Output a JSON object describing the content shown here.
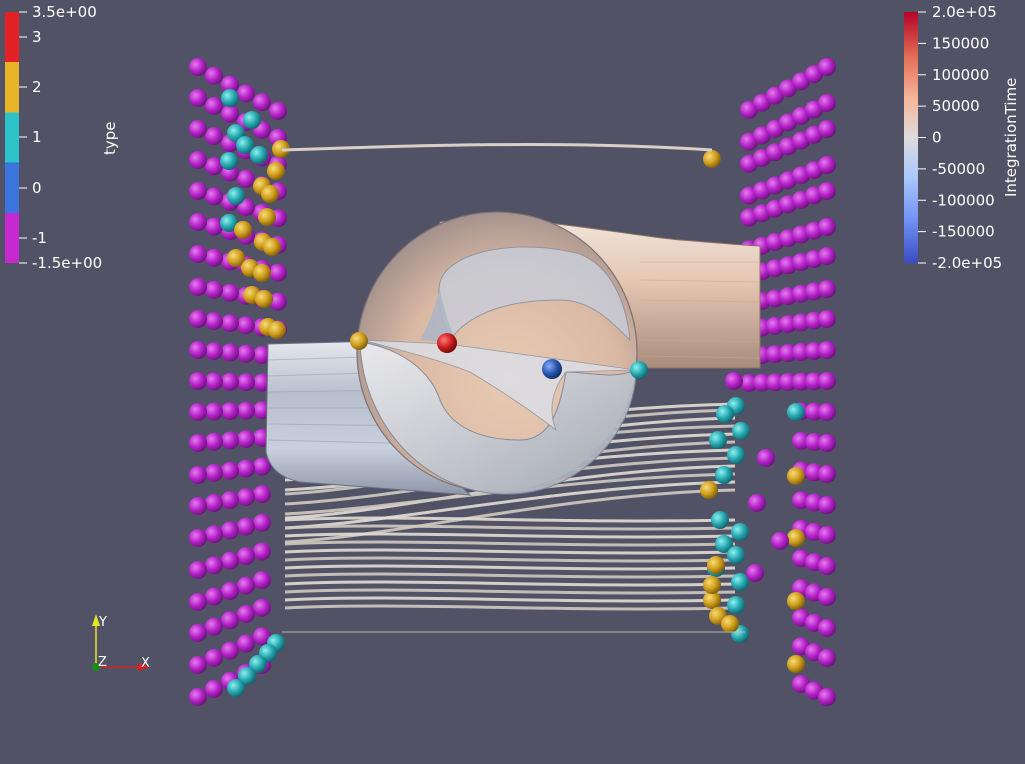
{
  "colors": {
    "background": "#525266",
    "magenta": "#b422c8",
    "teal": "#26b4bc",
    "gold": "#d4a422",
    "red": "#cc1e1e",
    "blue": "#2a58b4",
    "streamline": "#d6d2c8"
  },
  "type_legend": {
    "title": "type",
    "labels": [
      "3.5e+00",
      "3",
      "2",
      "1",
      "0",
      "-1",
      "-1.5e+00"
    ],
    "bands": [
      {
        "value": "3",
        "color": "#e32124"
      },
      {
        "value": "2",
        "color": "#e8b42a"
      },
      {
        "value": "1",
        "color": "#2bc2c8"
      },
      {
        "value": "0",
        "color": "#3a74dc"
      },
      {
        "value": "-1",
        "color": "#c42ad0"
      }
    ]
  },
  "time_legend": {
    "title": "IntegrationTime",
    "labels": [
      "2.0e+05",
      "150000",
      "100000",
      "50000",
      "0",
      "-50000",
      "-100000",
      "-150000",
      "-2.0e+05"
    ],
    "gradient": [
      "#b40426",
      "#e46e56",
      "#f5b89c",
      "#dddcdc",
      "#aac7fd",
      "#6f92f3",
      "#3b4cc0"
    ]
  },
  "orientation_axes": {
    "y": "Y",
    "z": "Z",
    "x": "X"
  }
}
